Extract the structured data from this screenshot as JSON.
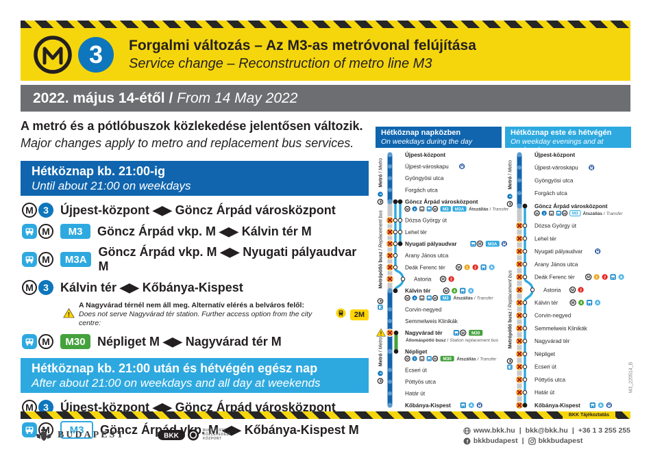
{
  "colors": {
    "yellow": "#f5d60d",
    "gray_bar": "#6d6e71",
    "blue_dark": "#1065ae",
    "blue_m3": "#0e76bc",
    "metro_line": "#1464ac",
    "cyan": "#2ea9e0",
    "green": "#44a13d",
    "gray_line": "#c7c8ca",
    "closed_orange": "#f7a62b",
    "closed_x": "#9e1b1f",
    "m1": "#eba824",
    "m2": "#e2231a",
    "m4": "#4ba82e",
    "rail_blue": "#1c4e9d",
    "tram_yellow": "#ffd500"
  },
  "header": {
    "line_number": "3",
    "title_hu": "Forgalmi változás – Az M3-as metróvonal felújítása",
    "title_en": "Service change – Reconstruction of metro line M3"
  },
  "date_bar": {
    "hu": "2022. május 14-étől",
    "sep": " / ",
    "en": "From 14 May 2022"
  },
  "intro": {
    "hu": "A metró és a pótlóbuszok közlekedése jelentősen változik.",
    "en": "Major changes apply to metro and replacement bus services."
  },
  "sections": [
    {
      "style": "dark",
      "title_hu": "Hétköznap kb. 21:00-ig",
      "title_en": "Until about 21:00 on weekdays",
      "rows": [
        {
          "icons": [
            "metro",
            "m3"
          ],
          "text": "Újpest-központ ◀▶ Göncz Árpád városközpont"
        },
        {
          "icons": [
            "busm"
          ],
          "badge": {
            "label": "M3",
            "style": "cyan"
          },
          "text": "Göncz Árpád vkp. M ◀▶ Kálvin tér M"
        },
        {
          "icons": [
            "busm"
          ],
          "badge": {
            "label": "M3A",
            "style": "cyan"
          },
          "text": "Göncz Árpád vkp. M ◀▶ Nyugati pályaudvar M"
        },
        {
          "icons": [
            "metro",
            "m3"
          ],
          "text": "Kálvin tér ◀▶ Kőbánya-Kispest",
          "note": {
            "hu": "A Nagyvárad térnél nem áll meg. Alternatív elérés a belváros felől:",
            "en": "Does not serve Nagyvárad tér station. Further access option from the city centre:",
            "icon": "tram",
            "badge": "2M"
          }
        },
        {
          "icons": [
            "busm"
          ],
          "badge": {
            "label": "M30",
            "style": "green"
          },
          "text": "Népliget M ◀▶ Nagyvárad tér M"
        }
      ]
    },
    {
      "style": "light",
      "title_hu": "Hétköznap kb. 21:00 után és hétvégén egész nap",
      "title_en": "After about 21:00 on weekdays and all day at weekends",
      "rows": [
        {
          "icons": [
            "metro",
            "m3"
          ],
          "text": "Újpest-központ ◀▶ Göncz Árpád városközpont"
        },
        {
          "icons": [
            "busm"
          ],
          "badge": {
            "label": "M3",
            "style": "outline"
          },
          "text": "Göncz Árpád vkp. M ◀▶ Kőbánya-Kispest M"
        }
      ]
    }
  ],
  "transfer_word": {
    "hu": "Átszállás",
    "sep": " / ",
    "en": "Transfer"
  },
  "diagrams": [
    {
      "id": "a",
      "header_style": "dark",
      "title_hu": "Hétköznap napközben",
      "title_en": "On weekdays during the day",
      "side_labels": [
        {
          "icons": [
            "metro",
            "m3"
          ],
          "hu": "Metró",
          "sep": " / ",
          "en": "Metro",
          "from": 0,
          "to": 4
        },
        {
          "icons": [
            "busm"
          ],
          "hu": "Metrópótló busz",
          "sep": " / ",
          "en": "Replacement bus",
          "from": 5,
          "to": 11
        },
        {
          "icons": [
            "metro",
            "m3"
          ],
          "hu": "Metró",
          "sep": " / ",
          "en": "Metro",
          "from": 12,
          "to": 19
        }
      ],
      "segments": {
        "metro": [
          [
            0,
            4
          ],
          [
            11,
            19
          ]
        ],
        "gray": [
          [
            4,
            11
          ]
        ],
        "bus": [
          {
            "lane": 1,
            "from": 4,
            "to": 11,
            "dev": 10
          },
          {
            "lane": 2,
            "from": 4,
            "to": 7
          }
        ],
        "green": [
          [
            14,
            15
          ]
        ]
      },
      "stations": [
        {
          "name": "Újpest-központ",
          "bold": true,
          "marks": [
            {
              "t": "dot",
              "l": 0
            }
          ]
        },
        {
          "name": "Újpest-városkapu",
          "icons": [
            "rail"
          ],
          "marks": [
            {
              "t": "dot",
              "l": 0
            }
          ]
        },
        {
          "name": "Gyöngyösi utca",
          "marks": [
            {
              "t": "dot",
              "l": 0
            }
          ]
        },
        {
          "name": "Forgách utca",
          "marks": [
            {
              "t": "dot",
              "l": 0
            }
          ]
        },
        {
          "name": "Göncz Árpád városközpont",
          "bold": true,
          "marks": [
            {
              "t": "dot",
              "l": 0
            },
            {
              "t": "bdot",
              "l": 1
            },
            {
              "t": "bdot",
              "l": 2
            }
          ],
          "sub": {
            "icons": [
              "metro",
              "m3",
              "busgray",
              "busm"
            ],
            "badges": [
              {
                "label": "M3",
                "style": "cyan"
              },
              {
                "label": "M3A",
                "style": "cyan"
              }
            ],
            "hu": "Átszállás",
            "sep": " / ",
            "en": "Transfer"
          }
        },
        {
          "name": "Dózsa György út",
          "marks": [
            {
              "t": "x",
              "l": 0
            },
            {
              "t": "o",
              "l": 1
            },
            {
              "t": "o",
              "l": 2
            }
          ]
        },
        {
          "name": "Lehel tér",
          "marks": [
            {
              "t": "x",
              "l": 0
            },
            {
              "t": "o",
              "l": 1
            },
            {
              "t": "o",
              "l": 2
            }
          ]
        },
        {
          "name": "Nyugati pályaudvar",
          "bold": true,
          "icons": [
            "busm"
          ],
          "badges": [
            {
              "label": "M3A",
              "style": "cyan"
            }
          ],
          "icons2": [
            "rail"
          ],
          "marks": [
            {
              "t": "x",
              "l": 0
            },
            {
              "t": "o",
              "l": 1
            },
            {
              "t": "bdot",
              "l": 2
            }
          ]
        },
        {
          "name": "Arany János utca",
          "marks": [
            {
              "t": "x",
              "l": 0
            },
            {
              "t": "o",
              "l": 1
            }
          ]
        },
        {
          "name": "Deák Ferenc tér",
          "icons": [
            "metro",
            "m1",
            "m2",
            "bus",
            "air"
          ],
          "marks": [
            {
              "t": "x",
              "l": 0
            },
            {
              "t": "o",
              "l": 1
            }
          ]
        },
        {
          "name": "Astoria",
          "indent": true,
          "icons": [
            "metro",
            "m2"
          ],
          "marks": [
            {
              "t": "x",
              "l": 0
            },
            {
              "t": "odev",
              "l": 1
            }
          ]
        },
        {
          "name": "Kálvin tér",
          "bold": true,
          "icons": [
            "metro",
            "m4",
            "bus",
            "air"
          ],
          "marks": [
            {
              "t": "dot",
              "l": 0
            },
            {
              "t": "bdot",
              "l": 1
            }
          ],
          "sub": {
            "icons": [
              "metro",
              "m3",
              "busgray",
              "busm"
            ],
            "badges": [
              {
                "label": "M3",
                "style": "cyan"
              }
            ],
            "hu": "Átszállás",
            "sep": " / ",
            "en": "Transfer"
          }
        },
        {
          "name": "Corvin-negyed",
          "marks": [
            {
              "t": "dot",
              "l": 0
            }
          ]
        },
        {
          "name": "Semmelweis Klinikák",
          "marks": [
            {
              "t": "dot",
              "l": 0
            }
          ]
        },
        {
          "name": "Nagyvárad tér",
          "bold": true,
          "warn": true,
          "icons": [
            "busm"
          ],
          "badges": [
            {
              "label": "M30",
              "style": "green"
            }
          ],
          "marks": [
            {
              "t": "x",
              "l": 0
            },
            {
              "t": "gdot",
              "l": 0
            }
          ],
          "sub": {
            "hu": "Állomáspótló busz",
            "sep": " / ",
            "en": "Station replacement bus"
          }
        },
        {
          "name": "Népliget",
          "bold": true,
          "marks": [
            {
              "t": "dot",
              "l": 0
            },
            {
              "t": "gdot",
              "l": 0
            }
          ],
          "sub": {
            "icons": [
              "metro",
              "m3",
              "busgray",
              "busm"
            ],
            "badges": [
              {
                "label": "M30",
                "style": "green"
              }
            ],
            "hu": "Átszállás",
            "sep": " / ",
            "en": "Transfer"
          }
        },
        {
          "name": "Ecseri út",
          "marks": [
            {
              "t": "dot",
              "l": 0
            }
          ]
        },
        {
          "name": "Pöttyös utca",
          "marks": [
            {
              "t": "dot",
              "l": 0
            }
          ]
        },
        {
          "name": "Határ út",
          "marks": [
            {
              "t": "dot",
              "l": 0
            }
          ]
        },
        {
          "name": "Kőbánya-Kispest",
          "bold": true,
          "icons": [
            "bus",
            "air",
            "rail"
          ],
          "marks": [
            {
              "t": "dot",
              "l": 0
            }
          ]
        }
      ]
    },
    {
      "id": "b",
      "header_style": "light",
      "title_hu": "Hétköznap este és hétvégén",
      "title_en": "On weekday evenings and at weekends",
      "side_labels": [
        {
          "icons": [
            "metro",
            "m3"
          ],
          "hu": "Metró",
          "sep": " / ",
          "en": "Metro",
          "from": 0,
          "to": 4
        },
        {
          "icons": [
            "busm"
          ],
          "hu": "Metrópótló busz",
          "sep": " / ",
          "en": "Replacement bus",
          "from": 5,
          "to": 19
        }
      ],
      "segments": {
        "metro": [
          [
            0,
            4
          ]
        ],
        "gray": [
          [
            4,
            19
          ]
        ],
        "bus": [
          {
            "lane": 1,
            "from": 4,
            "to": 19,
            "dev": 10
          }
        ],
        "green": []
      },
      "stations": [
        {
          "name": "Újpest-központ",
          "bold": true,
          "marks": [
            {
              "t": "dot",
              "l": 0
            }
          ]
        },
        {
          "name": "Újpest-városkapu",
          "icons": [
            "rail"
          ],
          "marks": [
            {
              "t": "dot",
              "l": 0
            }
          ]
        },
        {
          "name": "Gyöngyösi utca",
          "marks": [
            {
              "t": "dot",
              "l": 0
            }
          ]
        },
        {
          "name": "Forgách utca",
          "marks": [
            {
              "t": "dot",
              "l": 0
            }
          ]
        },
        {
          "name": "Göncz Árpád városközpont",
          "bold": true,
          "marks": [
            {
              "t": "dot",
              "l": 0
            },
            {
              "t": "bdot",
              "l": 1
            }
          ],
          "sub": {
            "icons": [
              "metro",
              "m3",
              "busgray",
              "busm"
            ],
            "badges": [
              {
                "label": "M3",
                "style": "outline"
              }
            ],
            "hu": "Átszállás",
            "sep": " / ",
            "en": "Transfer"
          }
        },
        {
          "name": "Dózsa György út",
          "marks": [
            {
              "t": "x",
              "l": 0
            },
            {
              "t": "o",
              "l": 1
            }
          ]
        },
        {
          "name": "Lehel tér",
          "marks": [
            {
              "t": "x",
              "l": 0
            },
            {
              "t": "o",
              "l": 1
            }
          ]
        },
        {
          "name": "Nyugati pályaudvar",
          "icons": [
            "rail"
          ],
          "marks": [
            {
              "t": "x",
              "l": 0
            },
            {
              "t": "o",
              "l": 1
            }
          ]
        },
        {
          "name": "Arany János utca",
          "marks": [
            {
              "t": "x",
              "l": 0
            },
            {
              "t": "o",
              "l": 1
            }
          ]
        },
        {
          "name": "Deák Ferenc tér",
          "icons": [
            "metro",
            "m1",
            "m2",
            "bus",
            "air"
          ],
          "marks": [
            {
              "t": "x",
              "l": 0
            },
            {
              "t": "o",
              "l": 1
            }
          ]
        },
        {
          "name": "Astoria",
          "indent": true,
          "icons": [
            "metro",
            "m2"
          ],
          "marks": [
            {
              "t": "x",
              "l": 0
            },
            {
              "t": "odev",
              "l": 1
            }
          ]
        },
        {
          "name": "Kálvin tér",
          "icons": [
            "metro",
            "m4",
            "bus",
            "air"
          ],
          "marks": [
            {
              "t": "x",
              "l": 0
            },
            {
              "t": "o",
              "l": 1
            }
          ]
        },
        {
          "name": "Corvin-negyed",
          "marks": [
            {
              "t": "x",
              "l": 0
            },
            {
              "t": "o",
              "l": 1
            }
          ]
        },
        {
          "name": "Semmelweis Klinikák",
          "marks": [
            {
              "t": "x",
              "l": 0
            },
            {
              "t": "o",
              "l": 1
            }
          ]
        },
        {
          "name": "Nagyvárad tér",
          "marks": [
            {
              "t": "x",
              "l": 0
            },
            {
              "t": "o",
              "l": 1
            }
          ]
        },
        {
          "name": "Népliget",
          "marks": [
            {
              "t": "x",
              "l": 0
            },
            {
              "t": "o",
              "l": 1
            }
          ]
        },
        {
          "name": "Ecseri út",
          "marks": [
            {
              "t": "x",
              "l": 0
            },
            {
              "t": "o",
              "l": 1
            }
          ]
        },
        {
          "name": "Pöttyös utca",
          "marks": [
            {
              "t": "x",
              "l": 0
            },
            {
              "t": "o",
              "l": 1
            }
          ]
        },
        {
          "name": "Határ út",
          "marks": [
            {
              "t": "x",
              "l": 0
            },
            {
              "t": "o",
              "l": 1
            }
          ]
        },
        {
          "name": "Kőbánya-Kispest",
          "bold": true,
          "icons": [
            "bus",
            "air",
            "rail"
          ],
          "marks": [
            {
              "t": "x",
              "l": 0
            },
            {
              "t": "bdot",
              "l": 1
            }
          ]
        }
      ]
    }
  ],
  "footer": {
    "budapest": "BUDAPEST",
    "bkk_name": "BKK",
    "bkk_sub_1": "BUDAPESTI",
    "bkk_sub_2": "KÖZLEKEDÉSI",
    "bkk_sub_3": "KÖZPONT",
    "website": "www.bkk.hu",
    "email": "bkk@bkk.hu",
    "phone": "+36 1 3 255 255",
    "facebook": "bkkbudapest",
    "instagram": "bkkbudapest",
    "sep": "|"
  },
  "meta": {
    "side_code": "M3_220514_B",
    "stripe_label": "BKK Tájékoztatás"
  }
}
